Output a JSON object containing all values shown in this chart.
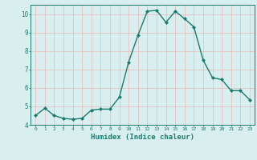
{
  "x": [
    0,
    1,
    2,
    3,
    4,
    5,
    6,
    7,
    8,
    9,
    10,
    11,
    12,
    13,
    14,
    15,
    16,
    17,
    18,
    19,
    20,
    21,
    22,
    23
  ],
  "y": [
    4.5,
    4.9,
    4.5,
    4.35,
    4.3,
    4.35,
    4.8,
    4.85,
    4.85,
    5.5,
    7.4,
    8.85,
    10.15,
    10.2,
    9.55,
    10.15,
    9.75,
    9.3,
    7.5,
    6.55,
    6.45,
    5.85,
    5.85,
    5.35
  ],
  "line_color": "#1a7a6e",
  "marker": "D",
  "marker_size": 2.0,
  "linewidth": 1.0,
  "xlabel": "Humidex (Indice chaleur)",
  "xlabel_fontsize": 6.5,
  "ylim": [
    4,
    10.5
  ],
  "xlim": [
    -0.5,
    23.5
  ],
  "yticks": [
    4,
    5,
    6,
    7,
    8,
    9,
    10
  ],
  "xticks": [
    0,
    1,
    2,
    3,
    4,
    5,
    6,
    7,
    8,
    9,
    10,
    11,
    12,
    13,
    14,
    15,
    16,
    17,
    18,
    19,
    20,
    21,
    22,
    23
  ],
  "bg_color": "#d9efef",
  "grid_color": "#e8b8b8",
  "tick_color": "#1a7a6e",
  "label_color": "#1a7a6e",
  "tick_fontsize_x": 4.5,
  "tick_fontsize_y": 5.5
}
